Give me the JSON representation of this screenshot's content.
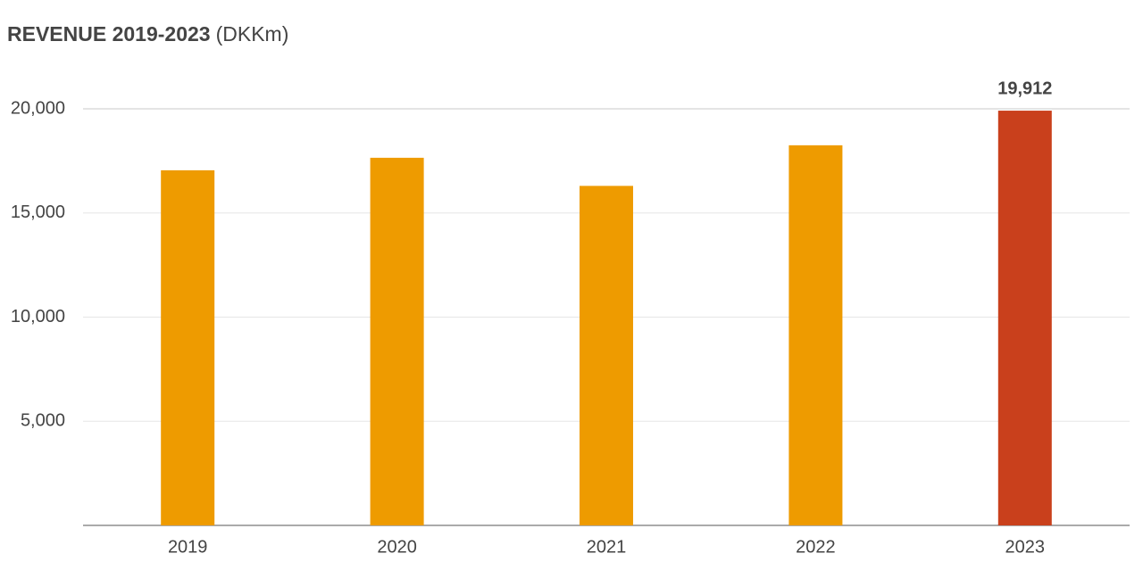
{
  "chart_data": {
    "type": "bar",
    "title": "REVENUE 2019-2023",
    "unit": "(DKKm)",
    "categories": [
      "2019",
      "2020",
      "2021",
      "2022",
      "2023"
    ],
    "values": [
      17050,
      17650,
      16300,
      18250,
      19912
    ],
    "value_labels": [
      null,
      null,
      null,
      null,
      "19,912"
    ],
    "colors": [
      "#ee9b00",
      "#ee9b00",
      "#ee9b00",
      "#ee9b00",
      "#c9401c"
    ],
    "ylim": [
      0,
      20000
    ],
    "yticks": [
      {
        "value": 5000,
        "label": "5,000"
      },
      {
        "value": 10000,
        "label": "10,000"
      },
      {
        "value": 15000,
        "label": "15,000"
      },
      {
        "value": 20000,
        "label": "20,000"
      }
    ],
    "grid": true
  }
}
